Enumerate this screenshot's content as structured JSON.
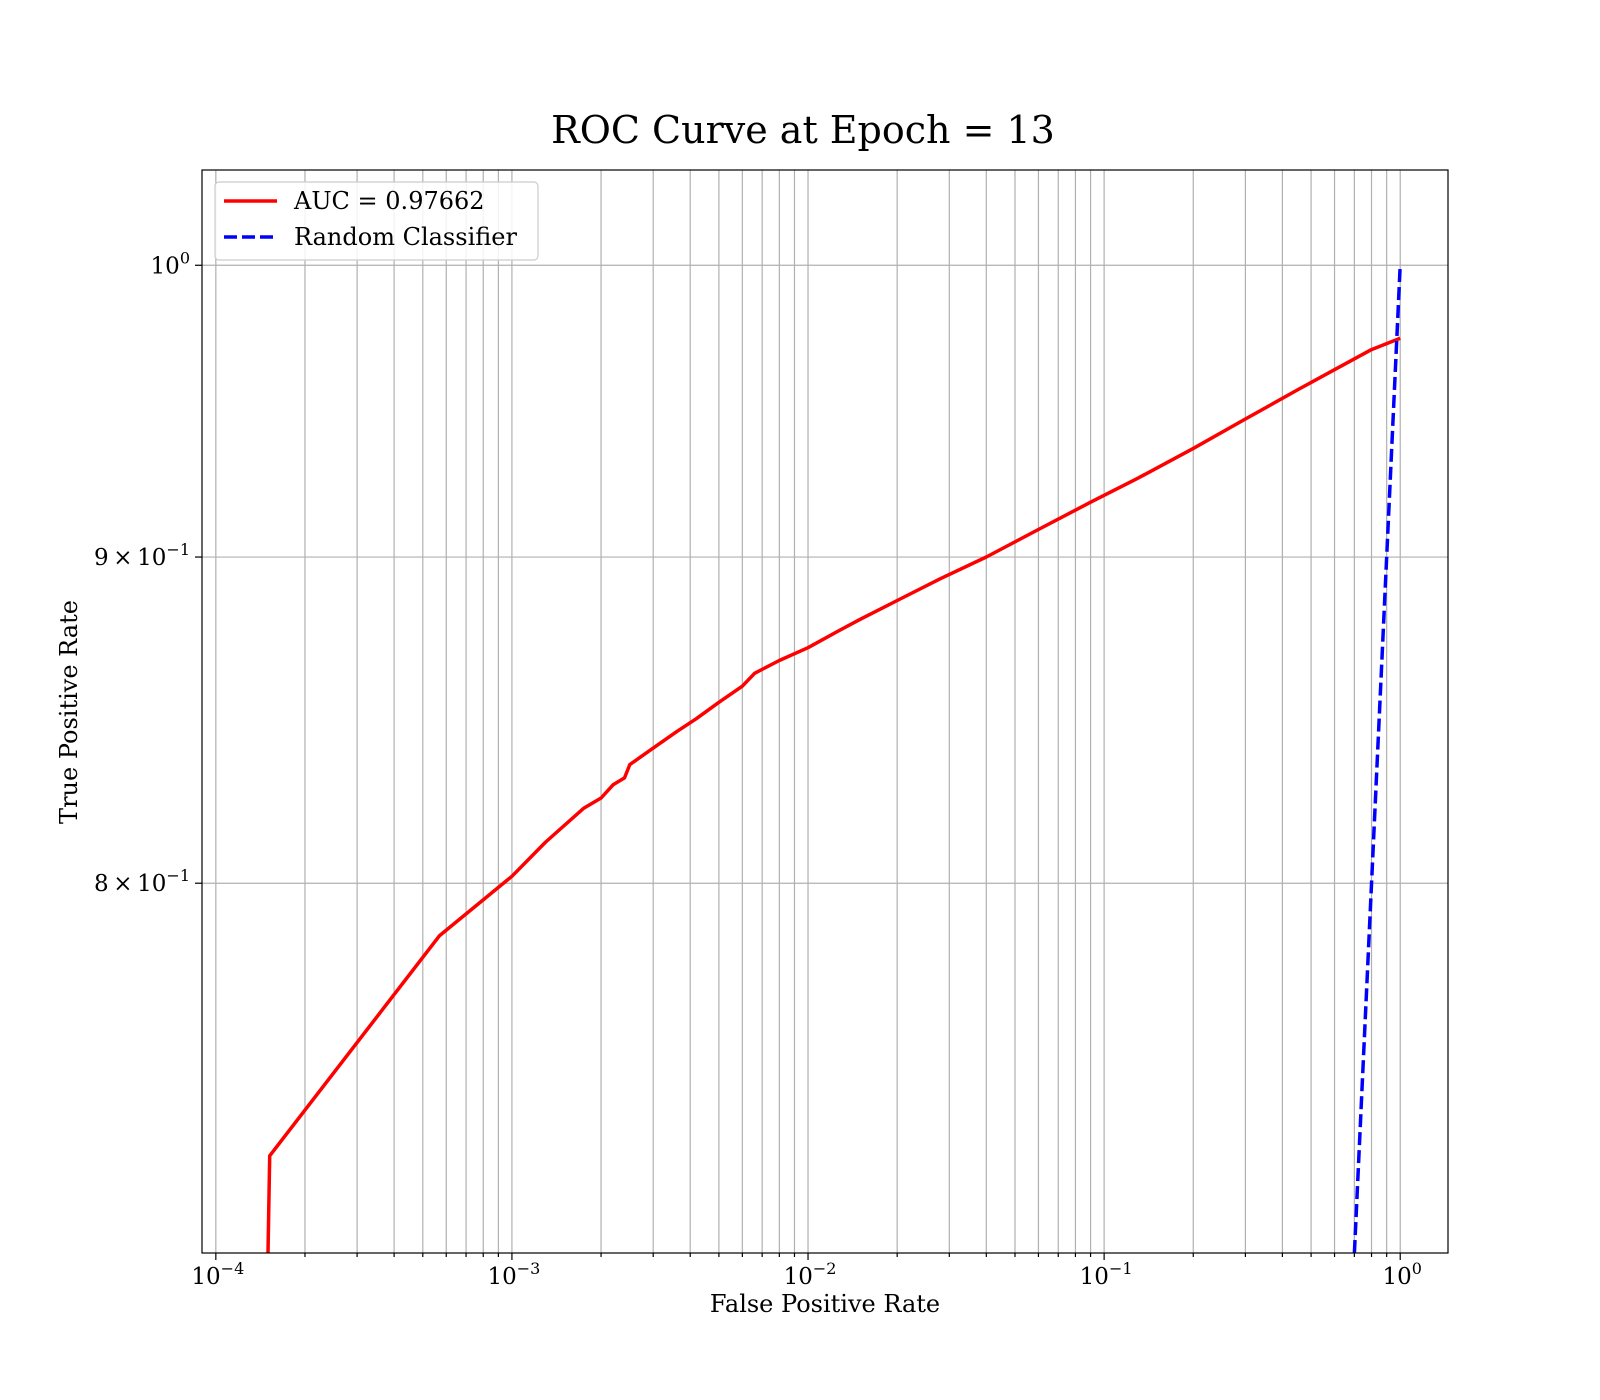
{
  "chart_data": {
    "type": "line",
    "title": "ROC Curve at Epoch = 13",
    "xlabel": "False Positive Rate",
    "ylabel": "True Positive Rate",
    "xscale": "log",
    "yscale": "log",
    "xlim": [
      8.98e-05,
      1.45
    ],
    "ylim": [
      0.7,
      1.035
    ],
    "grid": "both (major and minor)",
    "legend_position": "top-left",
    "x_ticks": [
      {
        "value": 0.0001,
        "base": "10",
        "exp": "−4"
      },
      {
        "value": 0.001,
        "base": "10",
        "exp": "−3"
      },
      {
        "value": 0.01,
        "base": "10",
        "exp": "−2"
      },
      {
        "value": 0.1,
        "base": "10",
        "exp": "−1"
      },
      {
        "value": 1,
        "base": "10",
        "exp": "0"
      }
    ],
    "y_ticks": [
      {
        "value": 0.8,
        "mant": "8",
        "times": "×",
        "base": "10",
        "exp": "−1"
      },
      {
        "value": 0.9,
        "mant": "9",
        "times": "×",
        "base": "10",
        "exp": "−1"
      },
      {
        "value": 1.0,
        "mant": "",
        "times": "",
        "base": "10",
        "exp": "0"
      }
    ],
    "series": [
      {
        "name": "AUC = 0.97662",
        "color": "#ff0000",
        "style": "solid",
        "points": [
          [
            0.00015,
            0.7
          ],
          [
            0.000152,
            0.725
          ],
          [
            0.00057,
            0.785
          ],
          [
            0.001,
            0.802
          ],
          [
            0.0013,
            0.812
          ],
          [
            0.00175,
            0.822
          ],
          [
            0.002,
            0.825
          ],
          [
            0.0022,
            0.829
          ],
          [
            0.0024,
            0.831
          ],
          [
            0.0025,
            0.835
          ],
          [
            0.003,
            0.84
          ],
          [
            0.0036,
            0.845
          ],
          [
            0.0042,
            0.849
          ],
          [
            0.005,
            0.854
          ],
          [
            0.006,
            0.859
          ],
          [
            0.0066,
            0.863
          ],
          [
            0.008,
            0.867
          ],
          [
            0.01,
            0.871
          ],
          [
            0.0125,
            0.876
          ],
          [
            0.015,
            0.88
          ],
          [
            0.02,
            0.886
          ],
          [
            0.028,
            0.893
          ],
          [
            0.04,
            0.9
          ],
          [
            0.06,
            0.909
          ],
          [
            0.09,
            0.918
          ],
          [
            0.13,
            0.926
          ],
          [
            0.2,
            0.936
          ],
          [
            0.3,
            0.946
          ],
          [
            0.45,
            0.956
          ],
          [
            0.6,
            0.963
          ],
          [
            0.8,
            0.97
          ],
          [
            1.0,
            0.974
          ]
        ]
      },
      {
        "name": "Random Classifier",
        "color": "#0000ff",
        "style": "dashed",
        "points": [
          [
            0.7,
            0.7
          ],
          [
            1.0,
            1.0
          ]
        ]
      }
    ]
  }
}
